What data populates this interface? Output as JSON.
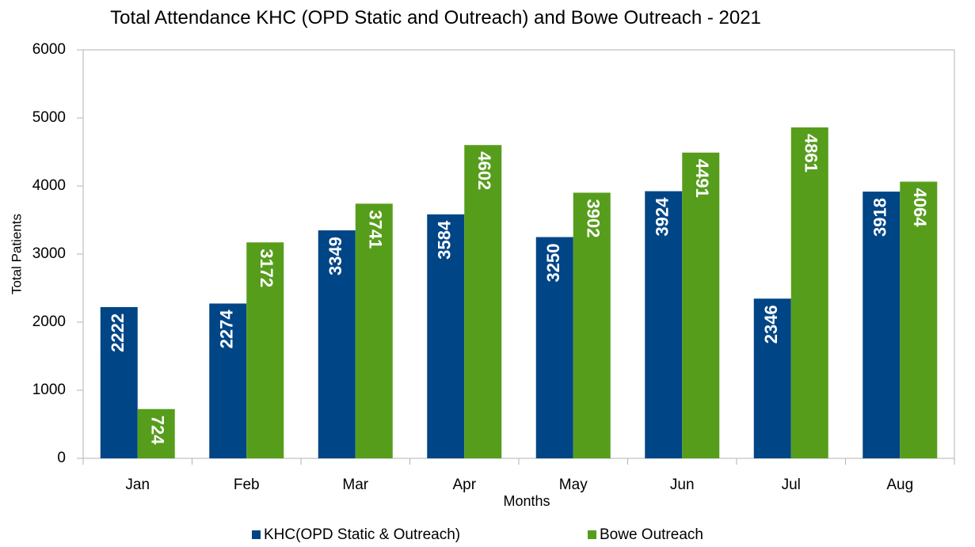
{
  "chart_data": {
    "type": "bar",
    "title": "Total Attendance KHC (OPD Static and Outreach) and Bowe Outreach - 2021",
    "x_label": "Months",
    "y_label": "Total Patients",
    "categories": [
      "Jan",
      "Feb",
      "Mar",
      "Apr",
      "May",
      "Jun",
      "Jul",
      "Aug"
    ],
    "series": [
      {
        "name": "KHC(OPD Static & Outreach)",
        "color": "#004586",
        "values": [
          2222,
          2274,
          3349,
          3584,
          3250,
          3924,
          2346,
          3918
        ]
      },
      {
        "name": "Bowe Outreach",
        "color": "#579d1c",
        "values": [
          724,
          3172,
          3741,
          4602,
          3902,
          4491,
          4861,
          4064
        ]
      }
    ],
    "ylim": [
      0,
      6000
    ],
    "yticks": [
      0,
      1000,
      2000,
      3000,
      4000,
      5000,
      6000
    ],
    "legend": "bottom",
    "grid": false
  }
}
